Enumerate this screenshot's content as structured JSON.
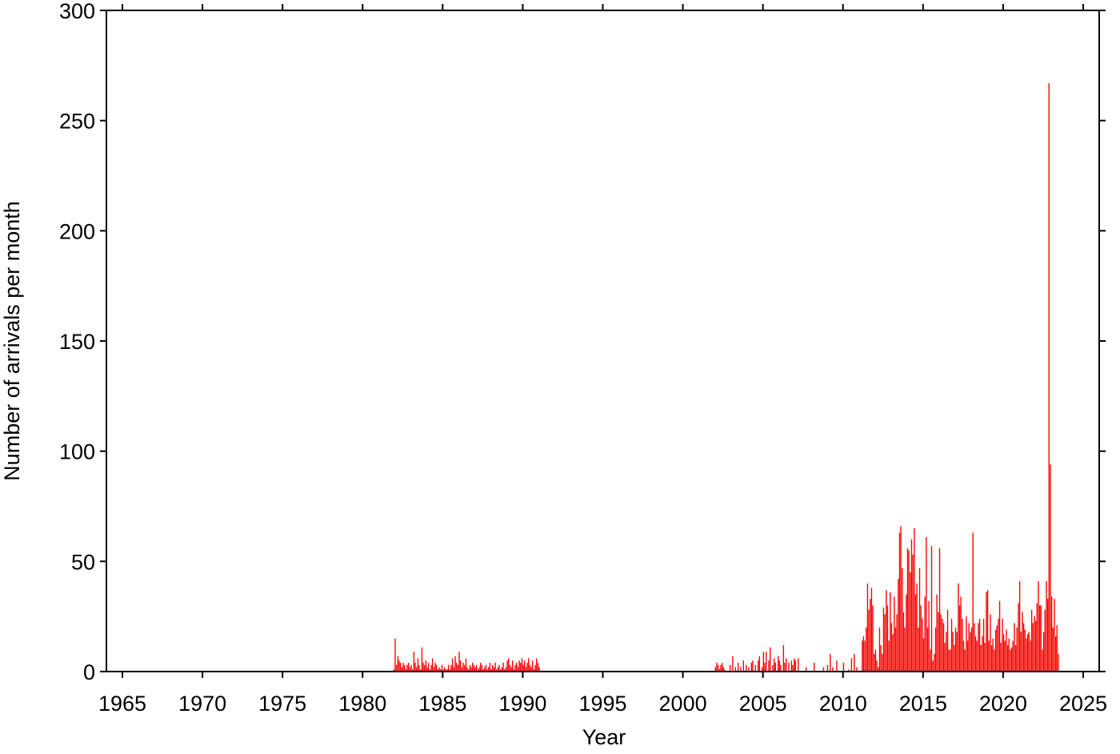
{
  "chart_data": {
    "type": "bar",
    "x_label": "Year",
    "y_label": "Number of arrivals per month",
    "color": "#ff0000",
    "xlim": [
      1964,
      2026
    ],
    "xticks": [
      1965,
      1970,
      1975,
      1980,
      1985,
      1990,
      1995,
      2000,
      2005,
      2010,
      2015,
      2020,
      2025
    ],
    "ylim": [
      0,
      300
    ],
    "yticks": [
      0,
      50,
      100,
      150,
      200,
      250,
      300
    ],
    "x": [
      1981.92,
      1982.0,
      1982.08,
      1982.17,
      1982.25,
      1982.33,
      1982.42,
      1982.5,
      1982.58,
      1982.67,
      1982.75,
      1982.83,
      1982.92,
      1983.0,
      1983.08,
      1983.17,
      1983.25,
      1983.33,
      1983.42,
      1983.5,
      1983.58,
      1983.67,
      1983.75,
      1983.83,
      1983.92,
      1984.0,
      1984.08,
      1984.17,
      1984.25,
      1984.33,
      1984.42,
      1984.5,
      1984.58,
      1984.67,
      1984.75,
      1984.83,
      1984.92,
      1985.0,
      1985.08,
      1985.17,
      1985.25,
      1985.33,
      1985.42,
      1985.5,
      1985.58,
      1985.67,
      1985.75,
      1985.83,
      1985.92,
      1986.0,
      1986.08,
      1986.17,
      1986.25,
      1986.33,
      1986.42,
      1986.5,
      1986.58,
      1986.67,
      1986.75,
      1986.83,
      1986.92,
      1987.0,
      1987.08,
      1987.17,
      1987.25,
      1987.33,
      1987.42,
      1987.5,
      1987.58,
      1987.67,
      1987.75,
      1987.83,
      1987.92,
      1988.0,
      1988.08,
      1988.17,
      1988.25,
      1988.33,
      1988.42,
      1988.5,
      1988.58,
      1988.67,
      1988.75,
      1988.83,
      1988.92,
      1989.0,
      1989.08,
      1989.17,
      1989.25,
      1989.33,
      1989.42,
      1989.5,
      1989.58,
      1989.67,
      1989.75,
      1989.83,
      1989.92,
      1990.0,
      1990.08,
      1990.17,
      1990.25,
      1990.33,
      1990.42,
      1990.5,
      1990.58,
      1990.67,
      1990.75,
      1990.83,
      1990.92,
      1991.0,
      2002.0,
      2002.08,
      2002.17,
      2002.25,
      2002.33,
      2002.42,
      2002.5,
      2002.58,
      2002.92,
      2003.08,
      2003.25,
      2003.42,
      2003.58,
      2003.75,
      2003.92,
      2004.08,
      2004.25,
      2004.33,
      2004.5,
      2004.67,
      2004.75,
      2004.92,
      2005.0,
      2005.08,
      2005.17,
      2005.33,
      2005.42,
      2005.58,
      2005.67,
      2005.75,
      2005.92,
      2006.0,
      2006.08,
      2006.25,
      2006.33,
      2006.42,
      2006.58,
      2006.75,
      2006.83,
      2006.92,
      2007.0,
      2007.17,
      2007.67,
      2008.17,
      2008.75,
      2009.0,
      2009.17,
      2009.33,
      2009.58,
      2010.0,
      2010.33,
      2010.5,
      2010.67,
      2010.83,
      2011.17,
      2011.25,
      2011.33,
      2011.42,
      2011.5,
      2011.58,
      2011.67,
      2011.75,
      2011.83,
      2011.92,
      2012.0,
      2012.08,
      2012.17,
      2012.25,
      2012.33,
      2012.42,
      2012.5,
      2012.58,
      2012.67,
      2012.75,
      2012.83,
      2012.92,
      2013.0,
      2013.08,
      2013.17,
      2013.25,
      2013.33,
      2013.42,
      2013.5,
      2013.58,
      2013.67,
      2013.75,
      2013.83,
      2013.92,
      2014.0,
      2014.08,
      2014.17,
      2014.25,
      2014.33,
      2014.42,
      2014.5,
      2014.58,
      2014.67,
      2014.75,
      2014.83,
      2014.92,
      2015.0,
      2015.08,
      2015.17,
      2015.25,
      2015.33,
      2015.42,
      2015.5,
      2015.58,
      2015.67,
      2015.75,
      2015.83,
      2015.92,
      2016.0,
      2016.08,
      2016.17,
      2016.25,
      2016.33,
      2016.42,
      2016.5,
      2016.58,
      2016.67,
      2016.75,
      2016.83,
      2016.92,
      2017.0,
      2017.08,
      2017.17,
      2017.25,
      2017.33,
      2017.42,
      2017.5,
      2017.58,
      2017.67,
      2017.75,
      2017.83,
      2017.92,
      2018.0,
      2018.08,
      2018.17,
      2018.25,
      2018.33,
      2018.42,
      2018.5,
      2018.58,
      2018.67,
      2018.75,
      2018.83,
      2018.92,
      2019.0,
      2019.08,
      2019.17,
      2019.25,
      2019.33,
      2019.42,
      2019.5,
      2019.58,
      2019.67,
      2019.75,
      2019.83,
      2019.92,
      2020.0,
      2020.08,
      2020.17,
      2020.25,
      2020.33,
      2020.42,
      2020.5,
      2020.58,
      2020.67,
      2020.75,
      2020.83,
      2020.92,
      2021.0,
      2021.08,
      2021.17,
      2021.25,
      2021.33,
      2021.42,
      2021.5,
      2021.58,
      2021.67,
      2021.75,
      2021.83,
      2021.92,
      2022.0,
      2022.08,
      2022.17,
      2022.25,
      2022.33,
      2022.42,
      2022.5,
      2022.58,
      2022.67,
      2022.75,
      2022.83,
      2022.92,
      2023.0,
      2023.08,
      2023.17,
      2023.25,
      2023.33,
      2023.42
    ],
    "values": [
      1,
      15,
      3,
      7,
      5,
      4,
      2,
      4,
      3,
      1,
      3,
      4,
      2,
      3,
      1,
      9,
      4,
      2,
      6,
      3,
      1,
      11,
      4,
      3,
      5,
      2,
      4,
      1,
      3,
      6,
      2,
      4,
      3,
      1,
      2,
      1,
      3,
      1,
      2,
      1,
      1,
      3,
      1,
      3,
      6,
      2,
      7,
      4,
      3,
      9,
      5,
      2,
      4,
      3,
      6,
      2,
      1,
      3,
      2,
      4,
      3,
      2,
      3,
      1,
      2,
      4,
      3,
      1,
      2,
      3,
      1,
      2,
      4,
      1,
      3,
      2,
      4,
      1,
      2,
      3,
      1,
      2,
      4,
      1,
      2,
      5,
      6,
      3,
      2,
      5,
      1,
      3,
      4,
      2,
      5,
      4,
      6,
      3,
      5,
      2,
      4,
      6,
      3,
      2,
      5,
      1,
      3,
      6,
      4,
      2,
      2,
      4,
      3,
      1,
      3,
      4,
      2,
      1,
      3,
      7,
      2,
      4,
      2,
      5,
      3,
      2,
      4,
      5,
      3,
      5,
      7,
      2,
      9,
      4,
      9,
      5,
      11,
      3,
      6,
      4,
      7,
      5,
      3,
      12,
      4,
      6,
      4,
      5,
      3,
      6,
      5,
      6,
      2,
      4,
      2,
      3,
      8,
      2,
      5,
      4,
      1,
      6,
      8,
      2,
      14,
      16,
      14,
      20,
      40,
      28,
      33,
      38,
      30,
      8,
      10,
      5,
      2,
      20,
      12,
      8,
      29,
      26,
      37,
      30,
      14,
      36,
      22,
      17,
      34,
      20,
      26,
      42,
      63,
      66,
      47,
      27,
      20,
      35,
      56,
      55,
      45,
      60,
      53,
      65,
      35,
      40,
      20,
      47,
      30,
      24,
      15,
      34,
      61,
      20,
      32,
      10,
      57,
      5,
      8,
      20,
      35,
      27,
      56,
      26,
      24,
      22,
      13,
      18,
      28,
      10,
      10,
      24,
      18,
      12,
      20,
      18,
      40,
      30,
      34,
      24,
      14,
      10,
      25,
      14,
      22,
      18,
      20,
      63,
      22,
      16,
      14,
      22,
      24,
      12,
      16,
      24,
      13,
      36,
      37,
      14,
      26,
      12,
      15,
      10,
      19,
      21,
      24,
      32,
      13,
      24,
      17,
      14,
      19,
      12,
      15,
      10,
      11,
      14,
      22,
      12,
      20,
      31,
      41,
      18,
      27,
      22,
      19,
      15,
      17,
      18,
      14,
      28,
      22,
      25,
      23,
      31,
      41,
      30,
      30,
      10,
      18,
      28,
      41,
      33,
      267,
      94,
      34,
      20,
      33,
      16,
      21,
      8
    ]
  }
}
